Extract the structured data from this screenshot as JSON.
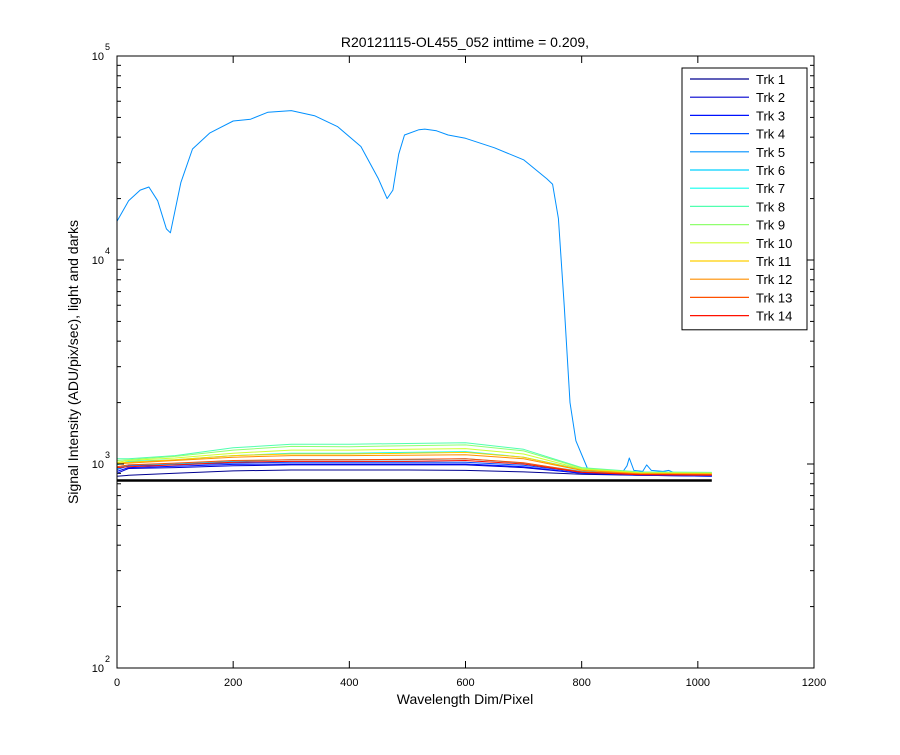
{
  "chart_data": {
    "type": "line",
    "title": "R20121115-OL455_052 inttime = 0.209,",
    "xlabel": "Wavelength Dim/Pixel",
    "ylabel": "Signal Intensity (ADU/pix/sec), light and darks",
    "xscale": "linear",
    "yscale": "log",
    "xlim": [
      0,
      1200
    ],
    "ylim": [
      100,
      100000
    ],
    "x_ticks": [
      {
        "value": 0,
        "label": "0"
      },
      {
        "value": 200,
        "label": "200"
      },
      {
        "value": 400,
        "label": "400"
      },
      {
        "value": 600,
        "label": "600"
      },
      {
        "value": 800,
        "label": "800"
      },
      {
        "value": 1000,
        "label": "1000"
      },
      {
        "value": 1200,
        "label": "1200"
      }
    ],
    "y_ticks": [
      {
        "value": 100,
        "base": "10",
        "exp": "2"
      },
      {
        "value": 1000,
        "base": "10",
        "exp": "3"
      },
      {
        "value": 10000,
        "base": "10",
        "exp": "4"
      },
      {
        "value": 100000,
        "base": "10",
        "exp": "5"
      }
    ],
    "grid": false,
    "legend_position": "top-right",
    "series": [
      {
        "name": "Trk 1",
        "color": "#00008f",
        "points": [
          [
            0,
            870
          ],
          [
            20,
            880
          ],
          [
            100,
            900
          ],
          [
            200,
            925
          ],
          [
            300,
            935
          ],
          [
            400,
            935
          ],
          [
            500,
            935
          ],
          [
            600,
            930
          ],
          [
            700,
            915
          ],
          [
            800,
            890
          ],
          [
            900,
            880
          ],
          [
            1024,
            880
          ]
        ]
      },
      {
        "name": "Trk 2",
        "color": "#0000cf",
        "points": [
          [
            0,
            900
          ],
          [
            20,
            950
          ],
          [
            100,
            960
          ],
          [
            200,
            980
          ],
          [
            300,
            990
          ],
          [
            400,
            990
          ],
          [
            500,
            990
          ],
          [
            600,
            990
          ],
          [
            700,
            960
          ],
          [
            800,
            900
          ],
          [
            900,
            880
          ],
          [
            1024,
            870
          ]
        ]
      },
      {
        "name": "Trk 3",
        "color": "#0010ff",
        "points": [
          [
            0,
            920
          ],
          [
            20,
            960
          ],
          [
            100,
            975
          ],
          [
            200,
            995
          ],
          [
            300,
            1000
          ],
          [
            400,
            1000
          ],
          [
            500,
            1000
          ],
          [
            600,
            1000
          ],
          [
            700,
            970
          ],
          [
            800,
            900
          ],
          [
            900,
            880
          ],
          [
            1024,
            870
          ]
        ]
      },
      {
        "name": "Trk 4",
        "color": "#0050ff",
        "points": [
          [
            0,
            940
          ],
          [
            20,
            980
          ],
          [
            100,
            990
          ],
          [
            200,
            1010
          ],
          [
            300,
            1020
          ],
          [
            400,
            1020
          ],
          [
            500,
            1020
          ],
          [
            600,
            1020
          ],
          [
            700,
            985
          ],
          [
            800,
            910
          ],
          [
            900,
            885
          ],
          [
            1024,
            875
          ]
        ]
      },
      {
        "name": "Trk 5",
        "color": "#0090ff",
        "points": [
          [
            0,
            15500
          ],
          [
            20,
            19500
          ],
          [
            40,
            22000
          ],
          [
            55,
            22800
          ],
          [
            70,
            19500
          ],
          [
            85,
            14200
          ],
          [
            92,
            13600
          ],
          [
            110,
            24000
          ],
          [
            130,
            35000
          ],
          [
            160,
            42000
          ],
          [
            200,
            48000
          ],
          [
            230,
            49000
          ],
          [
            260,
            53000
          ],
          [
            300,
            54000
          ],
          [
            340,
            51000
          ],
          [
            380,
            45000
          ],
          [
            420,
            36000
          ],
          [
            450,
            25000
          ],
          [
            465,
            20000
          ],
          [
            475,
            22000
          ],
          [
            485,
            33000
          ],
          [
            495,
            41000
          ],
          [
            520,
            43500
          ],
          [
            530,
            43800
          ],
          [
            550,
            43000
          ],
          [
            570,
            41000
          ],
          [
            600,
            39500
          ],
          [
            650,
            35500
          ],
          [
            700,
            31000
          ],
          [
            740,
            25000
          ],
          [
            750,
            23500
          ],
          [
            760,
            16000
          ],
          [
            770,
            6000
          ],
          [
            780,
            2000
          ],
          [
            790,
            1300
          ],
          [
            810,
            950
          ],
          [
            850,
            900
          ],
          [
            870,
            910
          ],
          [
            878,
            980
          ],
          [
            882,
            1070
          ],
          [
            890,
            930
          ],
          [
            905,
            920
          ],
          [
            912,
            990
          ],
          [
            920,
            930
          ],
          [
            940,
            920
          ],
          [
            950,
            930
          ],
          [
            960,
            905
          ],
          [
            1000,
            900
          ],
          [
            1024,
            900
          ]
        ]
      },
      {
        "name": "Trk 6",
        "color": "#00d0ff",
        "points": [
          [
            0,
            950
          ],
          [
            20,
            990
          ],
          [
            100,
            1000
          ],
          [
            200,
            1030
          ],
          [
            300,
            1050
          ],
          [
            400,
            1050
          ],
          [
            500,
            1050
          ],
          [
            600,
            1060
          ],
          [
            700,
            1010
          ],
          [
            800,
            920
          ],
          [
            900,
            890
          ],
          [
            1024,
            885
          ]
        ]
      },
      {
        "name": "Trk 7",
        "color": "#10ffef",
        "points": [
          [
            0,
            990
          ],
          [
            20,
            1030
          ],
          [
            100,
            1050
          ],
          [
            200,
            1100
          ],
          [
            300,
            1130
          ],
          [
            400,
            1130
          ],
          [
            500,
            1140
          ],
          [
            600,
            1150
          ],
          [
            700,
            1080
          ],
          [
            800,
            940
          ],
          [
            900,
            905
          ],
          [
            1024,
            900
          ]
        ]
      },
      {
        "name": "Trk 8",
        "color": "#50ffaf",
        "points": [
          [
            0,
            1060
          ],
          [
            20,
            1060
          ],
          [
            100,
            1100
          ],
          [
            200,
            1200
          ],
          [
            300,
            1250
          ],
          [
            400,
            1250
          ],
          [
            500,
            1260
          ],
          [
            600,
            1270
          ],
          [
            700,
            1180
          ],
          [
            800,
            960
          ],
          [
            900,
            915
          ],
          [
            1024,
            910
          ]
        ]
      },
      {
        "name": "Trk 9",
        "color": "#90ff6f",
        "points": [
          [
            0,
            1040
          ],
          [
            20,
            1050
          ],
          [
            100,
            1090
          ],
          [
            200,
            1170
          ],
          [
            300,
            1220
          ],
          [
            400,
            1215
          ],
          [
            500,
            1230
          ],
          [
            600,
            1240
          ],
          [
            700,
            1160
          ],
          [
            800,
            955
          ],
          [
            900,
            910
          ],
          [
            1024,
            905
          ]
        ]
      },
      {
        "name": "Trk 10",
        "color": "#cfff30",
        "points": [
          [
            0,
            1020
          ],
          [
            20,
            1040
          ],
          [
            100,
            1070
          ],
          [
            200,
            1130
          ],
          [
            300,
            1170
          ],
          [
            400,
            1170
          ],
          [
            500,
            1180
          ],
          [
            600,
            1190
          ],
          [
            700,
            1120
          ],
          [
            800,
            945
          ],
          [
            900,
            905
          ],
          [
            1024,
            900
          ]
        ]
      },
      {
        "name": "Trk 11",
        "color": "#ffcf00",
        "points": [
          [
            0,
            1010
          ],
          [
            20,
            1020
          ],
          [
            100,
            1050
          ],
          [
            200,
            1100
          ],
          [
            300,
            1120
          ],
          [
            400,
            1120
          ],
          [
            500,
            1130
          ],
          [
            600,
            1140
          ],
          [
            700,
            1080
          ],
          [
            800,
            935
          ],
          [
            900,
            900
          ],
          [
            1024,
            895
          ]
        ]
      },
      {
        "name": "Trk 12",
        "color": "#ff8f00",
        "points": [
          [
            0,
            1000
          ],
          [
            20,
            1010
          ],
          [
            100,
            1040
          ],
          [
            200,
            1080
          ],
          [
            300,
            1100
          ],
          [
            400,
            1100
          ],
          [
            500,
            1105
          ],
          [
            600,
            1110
          ],
          [
            700,
            1060
          ],
          [
            800,
            930
          ],
          [
            900,
            895
          ],
          [
            1024,
            890
          ]
        ]
      },
      {
        "name": "Trk 13",
        "color": "#ff5000",
        "points": [
          [
            0,
            970
          ],
          [
            20,
            990
          ],
          [
            100,
            1010
          ],
          [
            200,
            1040
          ],
          [
            300,
            1050
          ],
          [
            400,
            1050
          ],
          [
            500,
            1055
          ],
          [
            600,
            1060
          ],
          [
            700,
            1015
          ],
          [
            800,
            915
          ],
          [
            900,
            890
          ],
          [
            1024,
            885
          ]
        ]
      },
      {
        "name": "Trk 14",
        "color": "#ff1000",
        "points": [
          [
            0,
            960
          ],
          [
            20,
            970
          ],
          [
            100,
            990
          ],
          [
            200,
            1020
          ],
          [
            300,
            1030
          ],
          [
            400,
            1030
          ],
          [
            500,
            1030
          ],
          [
            600,
            1040
          ],
          [
            700,
            1000
          ],
          [
            800,
            910
          ],
          [
            900,
            885
          ],
          [
            1024,
            880
          ]
        ]
      },
      {
        "color": "#000000",
        "points": [
          [
            0,
            830
          ],
          [
            100,
            830
          ],
          [
            200,
            830
          ],
          [
            300,
            830
          ],
          [
            400,
            830
          ],
          [
            500,
            830
          ],
          [
            600,
            830
          ],
          [
            700,
            830
          ],
          [
            800,
            830
          ],
          [
            900,
            830
          ],
          [
            1024,
            830
          ]
        ]
      }
    ]
  }
}
